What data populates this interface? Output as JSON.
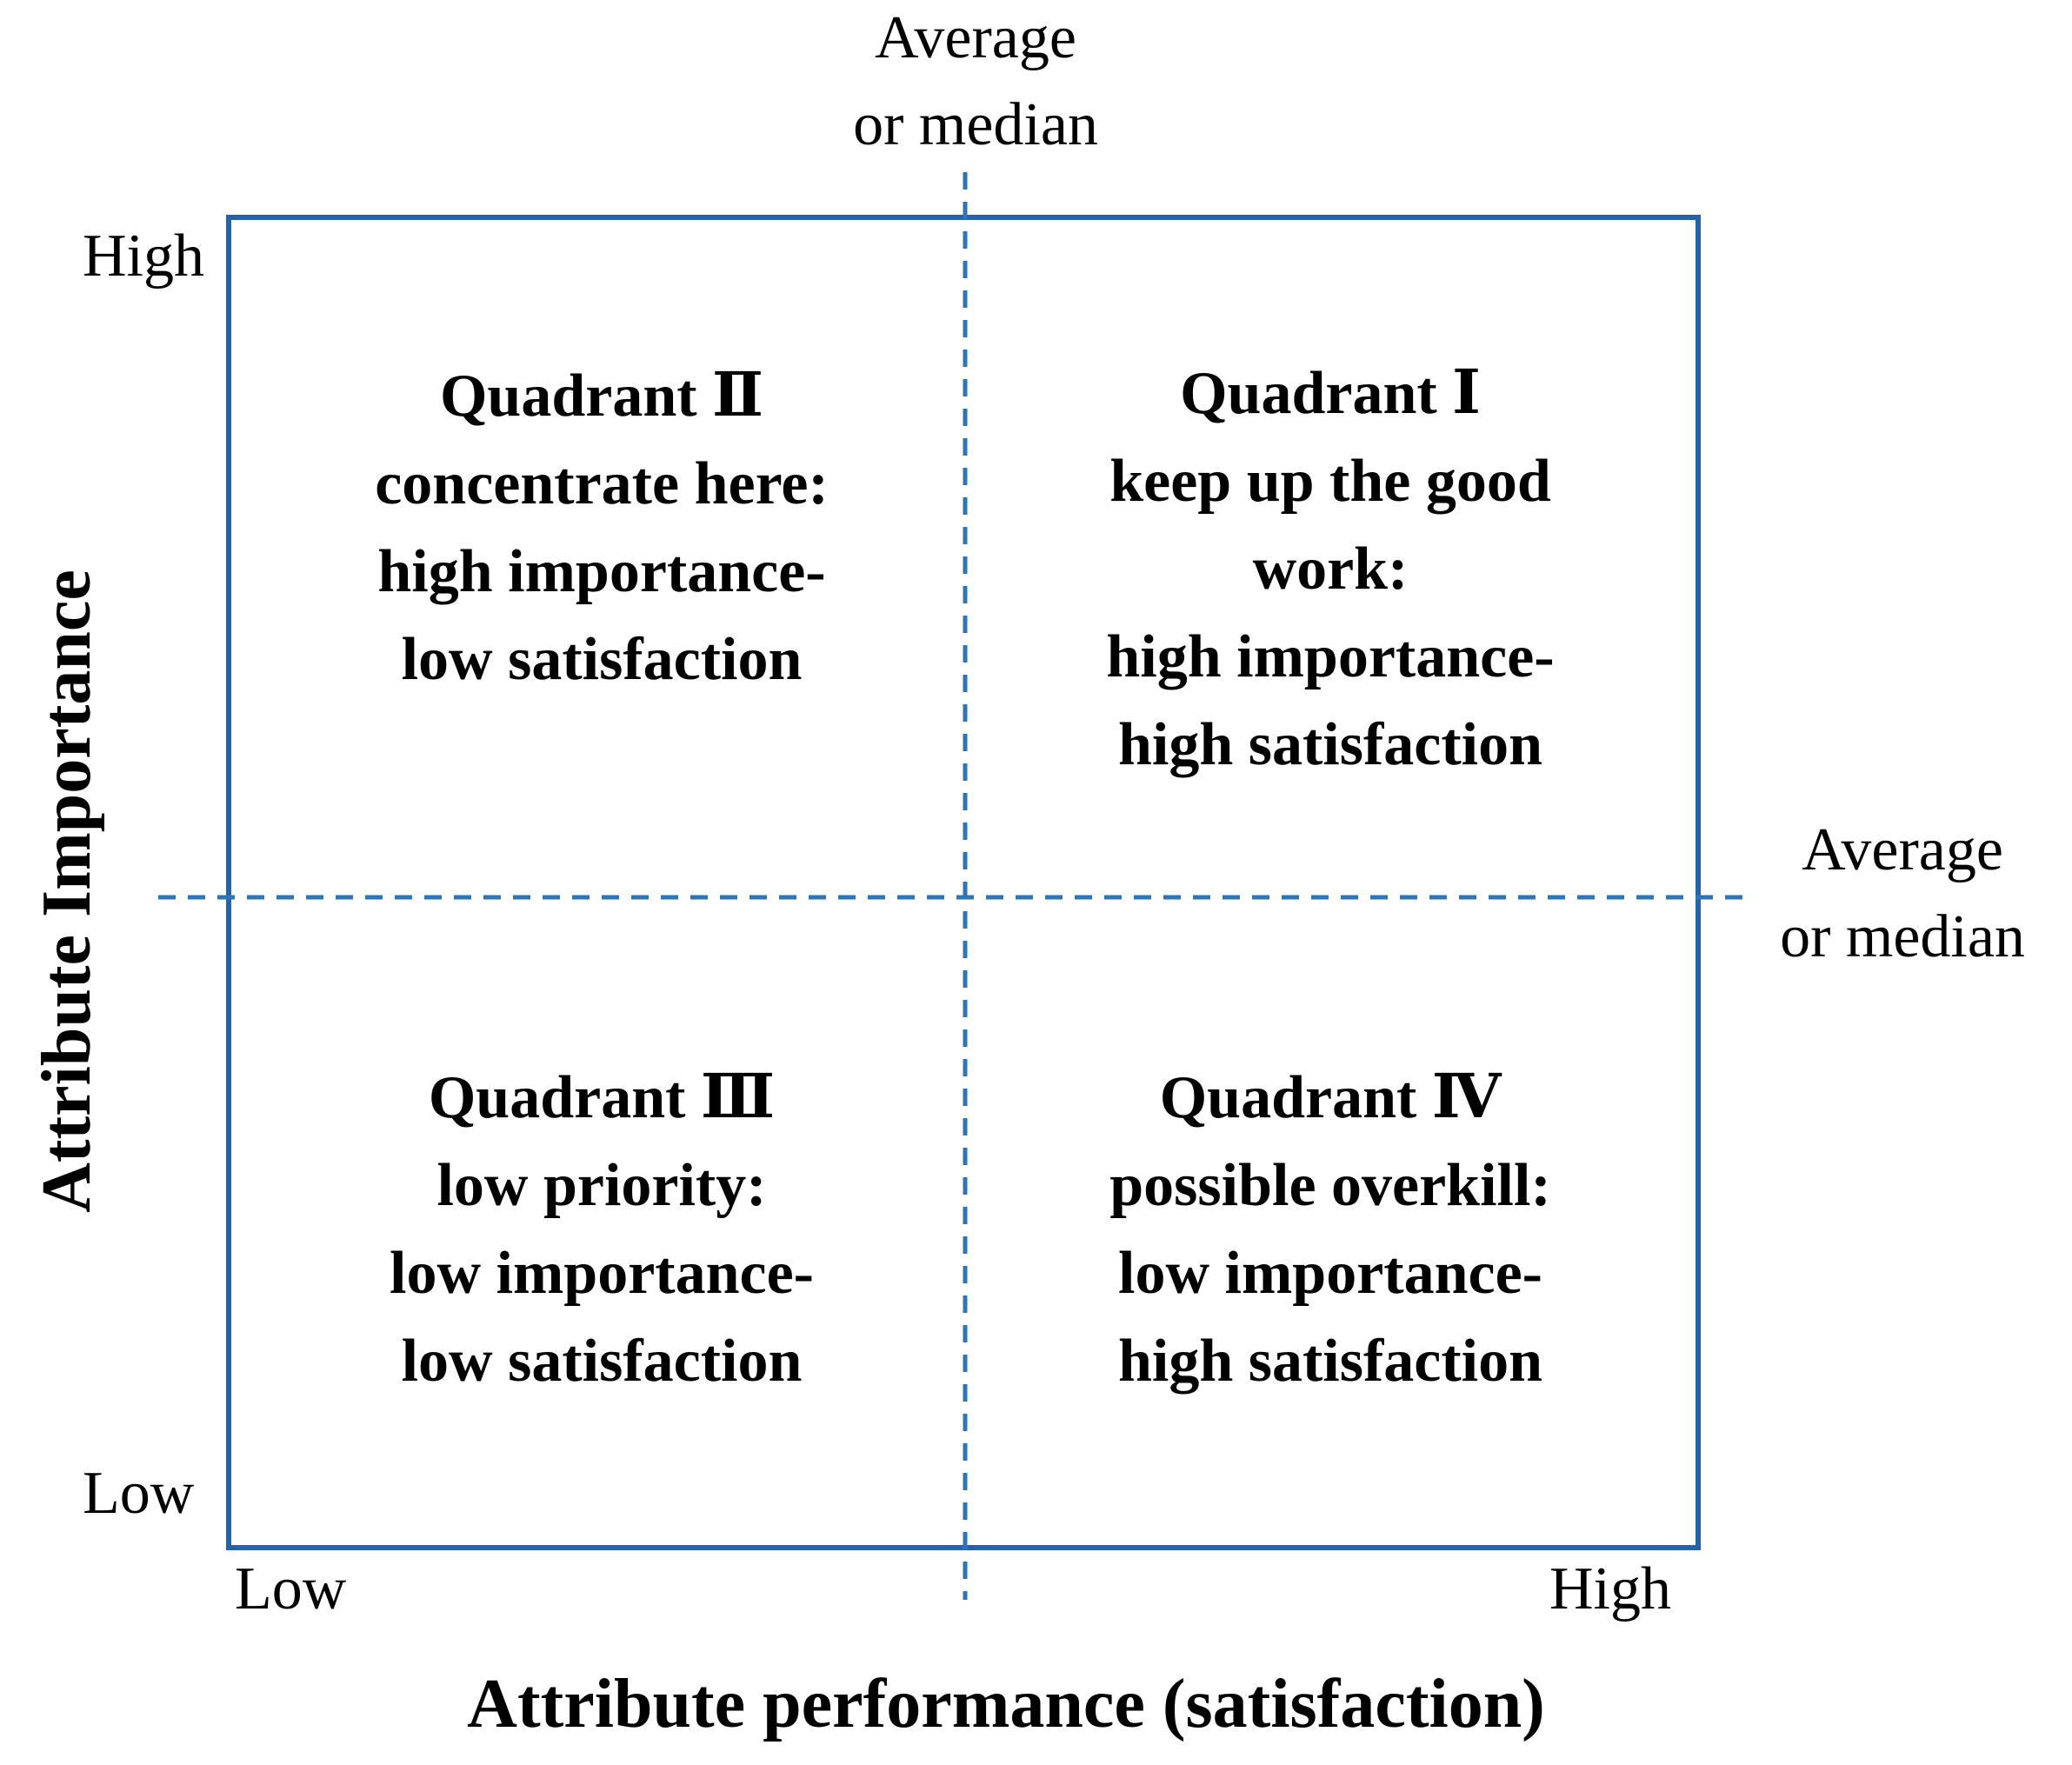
{
  "colors": {
    "frame": "#2563A6",
    "median_line": "#2E75B6",
    "text": "#000000"
  },
  "median_labels": {
    "vertical": [
      "Average",
      "or median"
    ],
    "horizontal": [
      "Average",
      "or median"
    ]
  },
  "y_axis": {
    "title": "Attribute Importance",
    "high": "High",
    "low": "Low"
  },
  "x_axis": {
    "title": "Attribute performance (satisfaction)",
    "low": "Low",
    "high": "High"
  },
  "quadrants": {
    "q2": [
      "Quadrant Ⅱ",
      "concentrate here:",
      "high importance-",
      "low satisfaction"
    ],
    "q1": [
      "Quadrant Ⅰ",
      "keep up the good",
      "work:",
      "high importance-",
      "high satisfaction"
    ],
    "q3": [
      "Quadrant Ⅲ",
      "low priority:",
      "low importance-",
      "low satisfaction"
    ],
    "q4": [
      "Quadrant Ⅳ",
      "possible overkill:",
      "low importance-",
      "high satisfaction"
    ]
  }
}
